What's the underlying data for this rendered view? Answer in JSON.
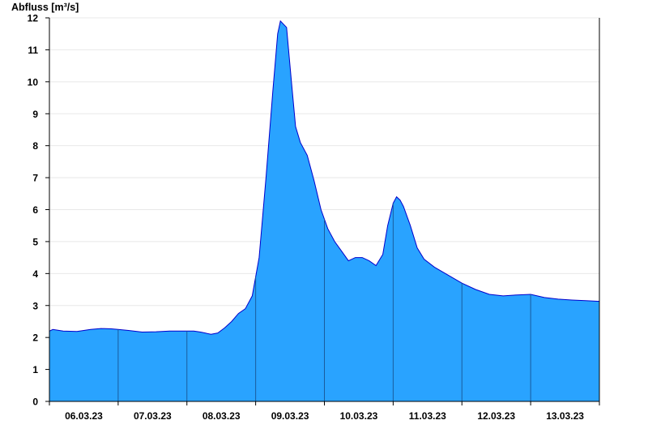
{
  "chart_data": {
    "type": "area",
    "title": "",
    "xlabel": "",
    "ylabel": "Abfluss [m³/s]",
    "ylim": [
      0,
      12
    ],
    "yticks": [
      "0",
      "1",
      "2",
      "3",
      "4",
      "5",
      "6",
      "7",
      "8",
      "9",
      "10",
      "11",
      "12"
    ],
    "day_labels": [
      "06.03.23",
      "07.03.23",
      "08.03.23",
      "09.03.23",
      "10.03.23",
      "11.03.23",
      "12.03.23",
      "13.03.23"
    ],
    "x_unit": "days since start of axis",
    "xlim": [
      0,
      8
    ],
    "grid": "horizontal",
    "colors": {
      "fill": "#29a3ff",
      "line": "#0000cc",
      "day_line": "#1a5c9e",
      "grid": "#e8e8e8",
      "axis": "#000000"
    },
    "series": [
      {
        "values": [
          [
            0.0,
            2.2
          ],
          [
            0.05,
            2.25
          ],
          [
            0.2,
            2.2
          ],
          [
            0.4,
            2.19
          ],
          [
            0.6,
            2.25
          ],
          [
            0.75,
            2.28
          ],
          [
            0.9,
            2.27
          ],
          [
            1.0,
            2.25
          ],
          [
            1.15,
            2.22
          ],
          [
            1.35,
            2.17
          ],
          [
            1.55,
            2.18
          ],
          [
            1.75,
            2.2
          ],
          [
            1.95,
            2.2
          ],
          [
            2.1,
            2.2
          ],
          [
            2.2,
            2.17
          ],
          [
            2.35,
            2.1
          ],
          [
            2.45,
            2.14
          ],
          [
            2.55,
            2.3
          ],
          [
            2.65,
            2.5
          ],
          [
            2.75,
            2.75
          ],
          [
            2.85,
            2.9
          ],
          [
            2.95,
            3.3
          ],
          [
            3.05,
            4.5
          ],
          [
            3.15,
            7.0
          ],
          [
            3.25,
            9.7
          ],
          [
            3.32,
            11.5
          ],
          [
            3.36,
            11.9
          ],
          [
            3.45,
            11.7
          ],
          [
            3.52,
            10.0
          ],
          [
            3.58,
            8.6
          ],
          [
            3.65,
            8.1
          ],
          [
            3.75,
            7.7
          ],
          [
            3.85,
            6.9
          ],
          [
            3.95,
            6.0
          ],
          [
            4.05,
            5.4
          ],
          [
            4.15,
            5.0
          ],
          [
            4.25,
            4.7
          ],
          [
            4.35,
            4.4
          ],
          [
            4.45,
            4.5
          ],
          [
            4.55,
            4.5
          ],
          [
            4.65,
            4.4
          ],
          [
            4.75,
            4.25
          ],
          [
            4.85,
            4.6
          ],
          [
            4.92,
            5.5
          ],
          [
            5.0,
            6.2
          ],
          [
            5.05,
            6.4
          ],
          [
            5.1,
            6.3
          ],
          [
            5.15,
            6.1
          ],
          [
            5.25,
            5.5
          ],
          [
            5.35,
            4.8
          ],
          [
            5.45,
            4.45
          ],
          [
            5.6,
            4.2
          ],
          [
            5.8,
            3.95
          ],
          [
            6.0,
            3.7
          ],
          [
            6.2,
            3.5
          ],
          [
            6.4,
            3.35
          ],
          [
            6.6,
            3.3
          ],
          [
            6.8,
            3.33
          ],
          [
            7.0,
            3.35
          ],
          [
            7.2,
            3.25
          ],
          [
            7.4,
            3.2
          ],
          [
            7.6,
            3.17
          ],
          [
            7.8,
            3.15
          ],
          [
            8.0,
            3.13
          ]
        ]
      }
    ]
  }
}
